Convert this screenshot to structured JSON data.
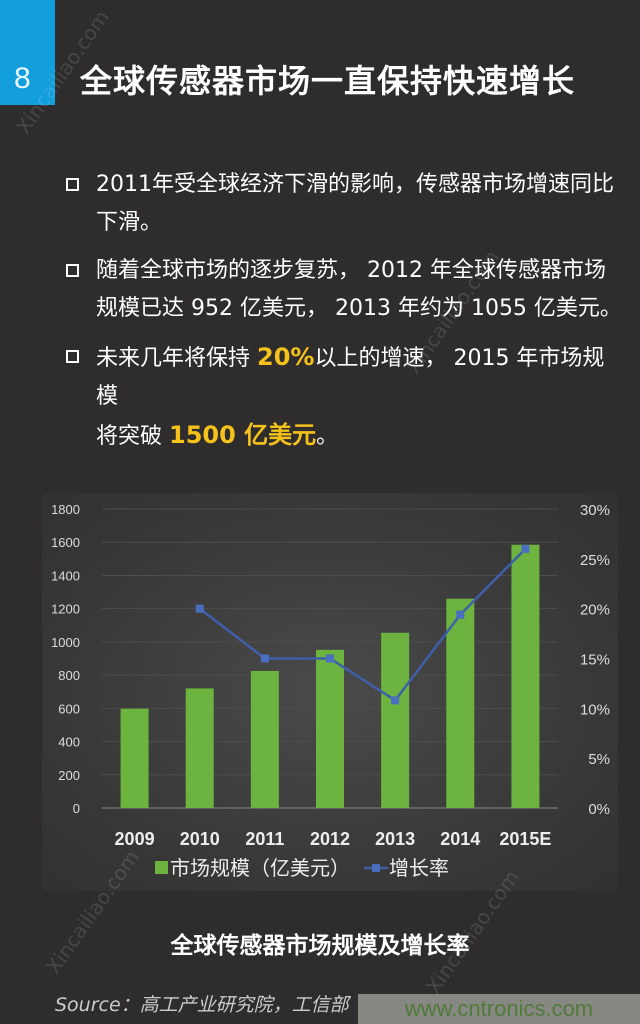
{
  "header": {
    "number": "8",
    "title": "全球传感器市场一直保持快速增长"
  },
  "bullets": [
    {
      "lines": [
        "2011年受全球经济下滑的影响，传感器市场增速同比",
        "下滑。"
      ]
    },
    {
      "lines": [
        "随着全球市场的逐步复苏， 2012 年全球传感器市场",
        "规模已达 952 亿美元， 2013 年约为 1055 亿美元。"
      ]
    },
    {
      "pre": "未来几年将保持 ",
      "hl1": "20%",
      "mid": "以上的增速， 2015 年市场规模",
      "line2_pre": "将突破 ",
      "hl2": "1500 亿美元",
      "post": "。"
    }
  ],
  "colors": {
    "bar": "#6db33f",
    "line": "#3f5fa8",
    "highlight": "#f5c21b",
    "badge": "#139edc"
  },
  "chart_data": {
    "type": "bar+line",
    "categories": [
      "2009",
      "2010",
      "2011",
      "2012",
      "2013",
      "2014",
      "2015E"
    ],
    "series": [
      {
        "name": "市场规模（亿美元）",
        "type": "bar",
        "axis": "left",
        "values": [
          598,
          720,
          825,
          952,
          1055,
          1260,
          1585
        ]
      },
      {
        "name": "增长率",
        "type": "line",
        "axis": "right",
        "values": [
          null,
          20.0,
          15.0,
          15.0,
          10.8,
          19.4,
          26.0
        ]
      }
    ],
    "y_left": {
      "range": [
        0,
        1800
      ],
      "ticks": [
        "0",
        "200",
        "400",
        "600",
        "800",
        "1000",
        "1200",
        "1400",
        "1600",
        "1800"
      ]
    },
    "y_right": {
      "range": [
        0,
        30
      ],
      "ticks": [
        "0%",
        "5%",
        "10%",
        "15%",
        "20%",
        "25%",
        "30%"
      ]
    },
    "grid": true,
    "legend": "bottom",
    "caption": "全球传感器市场规模及增长率"
  },
  "footer": {
    "source": "Source：高工产业研究院，工信部",
    "site": "www.cntronics.com"
  },
  "watermark": "新材料在线 Xincailiao.com"
}
